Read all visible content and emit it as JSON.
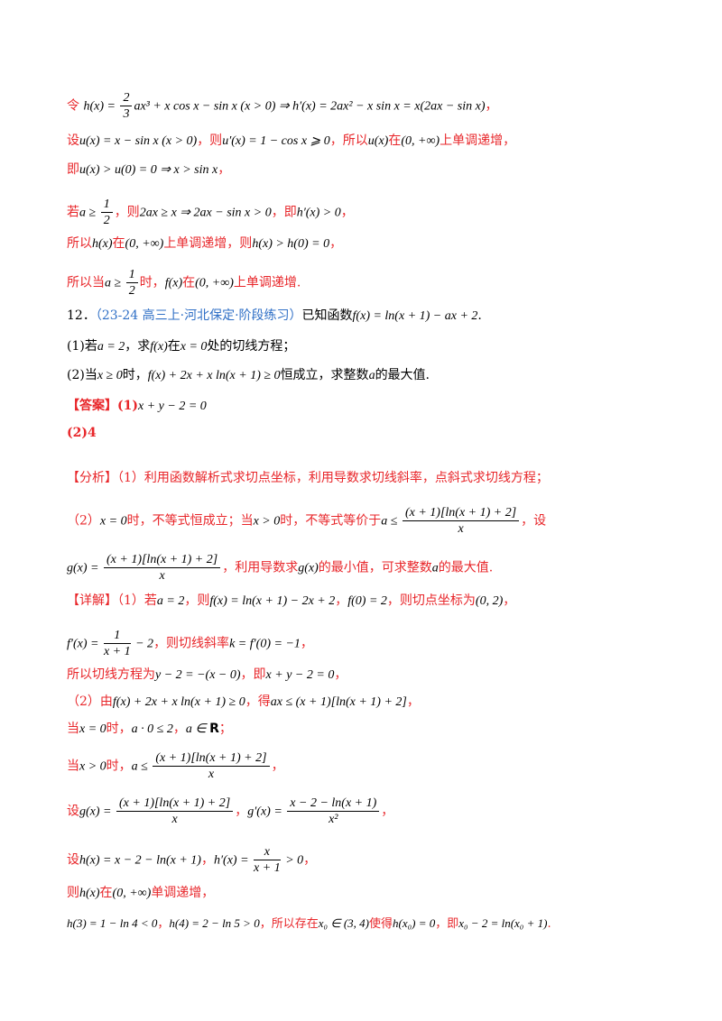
{
  "lines": {
    "l1": {
      "pre": "令",
      "math": "h(x) = ",
      "frac_num": "2",
      "frac_den": "3",
      "math2": "ax³ + x cos x − sin x (x > 0) ⇒ h′(x) = 2ax² − x sin x = x(2ax − sin x)",
      "post": "，"
    },
    "l2": {
      "a": "设",
      "b": "u(x) = x − sin x (x > 0)",
      "c": "，则",
      "d": "u′(x) = 1 − cos x ⩾ 0",
      "e": "，所以",
      "f": "u(x)",
      "g": "在",
      "h": "(0, +∞)",
      "i": "上单调递增，"
    },
    "l3": {
      "a": "即",
      "b": "u(x) > u(0) = 0 ⇒ x > sin x",
      "c": "，"
    },
    "l4": {
      "a": "若",
      "b": "a ≥ ",
      "n": "1",
      "d": "2",
      "c": "，则",
      "e": "2ax ≥ x ⇒ 2ax − sin x > 0",
      "f": "，即",
      "g": "h′(x) > 0",
      "h": "，"
    },
    "l5": {
      "a": "所以",
      "b": "h(x)",
      "c": "在",
      "d": "(0, +∞)",
      "e": "上单调递增，则",
      "f": "h(x) > h(0) = 0",
      "g": "，"
    },
    "l6": {
      "a": "所以当",
      "b": "a ≥ ",
      "n": "1",
      "d": "2",
      "c": "时，",
      "e": "f(x)",
      "f": "在",
      "g": "(0, +∞)",
      "h": "上单调递增."
    }
  },
  "problem": {
    "number": "12．",
    "source": "（23-24 高三上·河北保定·阶段练习）",
    "stem_a": "已知函数",
    "stem_b": "f(x) = ln(x + 1) − ax + 2",
    "stem_c": ".",
    "q1_a": "(1)若",
    "q1_b": "a = 2",
    "q1_c": "，求",
    "q1_d": "f(x)",
    "q1_e": "在",
    "q1_f": "x = 0",
    "q1_g": "处的切线方程；",
    "q2_a": "(2)当",
    "q2_b": "x ≥ 0",
    "q2_c": "时，",
    "q2_d": "f(x) + 2x + x ln(x + 1) ≥ 0",
    "q2_e": "恒成立，求整数",
    "q2_f": "a",
    "q2_g": "的最大值."
  },
  "answer": {
    "label": "【答案】",
    "p1": "(1)",
    "p1_math": "x + y − 2 = 0",
    "p2": "(2)4"
  },
  "analysis": {
    "label": "【分析】",
    "t1": "（1）利用函数解析式求切点坐标，利用导数求切线斜率，点斜式求切线方程；",
    "t2a": "（2）",
    "t2b": "x = 0",
    "t2c": "时，不等式恒成立；当",
    "t2d": "x > 0",
    "t2e": "时，不等式等价于",
    "t2f": "a ≤ ",
    "g_num": "(x + 1)[ln(x + 1) + 2]",
    "g_den": "x",
    "t2g": "，设",
    "t3a": "g(x) = ",
    "t3b": "，利用导数求",
    "t3c": "g(x)",
    "t3d": "的最小值，可求整数",
    "t3e": "a",
    "t3f": "的最大值."
  },
  "detail": {
    "label": "【详解】",
    "d1a": "（1）若",
    "d1b": "a = 2",
    "d1c": "，则",
    "d1d": "f(x) = ln(x + 1) − 2x + 2",
    "d1e": "，",
    "d1f": "f(0) = 2",
    "d1g": "，则切点坐标为",
    "d1h": "(0, 2)",
    "d1i": "，",
    "d2a": "f′(x) = ",
    "d2_num": "1",
    "d2_den": "x + 1",
    "d2b": " − 2",
    "d2c": "，则切线斜率",
    "d2d": "k = f′(0) = −1",
    "d2e": "，",
    "d3a": "所以切线方程为",
    "d3b": "y − 2 = −(x − 0)",
    "d3c": "，即",
    "d3d": "x + y − 2 = 0",
    "d3e": "，",
    "d4a": "（2）由",
    "d4b": "f(x) + 2x + x ln(x + 1) ≥ 0",
    "d4c": "，得",
    "d4d": "ax ≤ (x + 1)[ln(x + 1) + 2]",
    "d4e": "，",
    "d5a": "当",
    "d5b": "x = 0",
    "d5c": "时，",
    "d5d": "a · 0 ≤ 2",
    "d5e": "，",
    "d5f": "a ∈ ",
    "d5g": "R",
    "d5h": "；",
    "d6a": "当",
    "d6b": "x > 0",
    "d6c": "时，",
    "d6d": "a ≤ ",
    "d6_num": "(x + 1)[ln(x + 1) + 2]",
    "d6_den": "x",
    "d6e": "，",
    "d7a": "设",
    "d7b": "g(x) = ",
    "d7_num": "(x + 1)[ln(x + 1) + 2]",
    "d7_den": "x",
    "d7c": "，",
    "d7d": "g′(x) = ",
    "d7_num2": "x − 2 − ln(x + 1)",
    "d7_den2": "x²",
    "d7e": "，",
    "d8a": "设",
    "d8b": "h(x) = x − 2 − ln(x + 1)",
    "d8c": "，",
    "d8d": "h′(x) = ",
    "d8_num": "x",
    "d8_den": "x + 1",
    "d8e": " > 0",
    "d8f": "，",
    "d9a": "则",
    "d9b": "h(x)",
    "d9c": "在",
    "d9d": "(0, +∞)",
    "d9e": "单调递增，",
    "d10a": "h(3) = 1 − ln 4 < 0",
    "d10b": "，",
    "d10c": "h(4) = 2 − ln 5 > 0",
    "d10d": "，所以存在",
    "d10e": "x₀ ∈ (3, 4)",
    "d10f": "使得",
    "d10g": "h(x₀) = 0",
    "d10h": "，即",
    "d10i": "x₀ − 2 = ln(x₀ + 1)",
    "d10j": "."
  }
}
